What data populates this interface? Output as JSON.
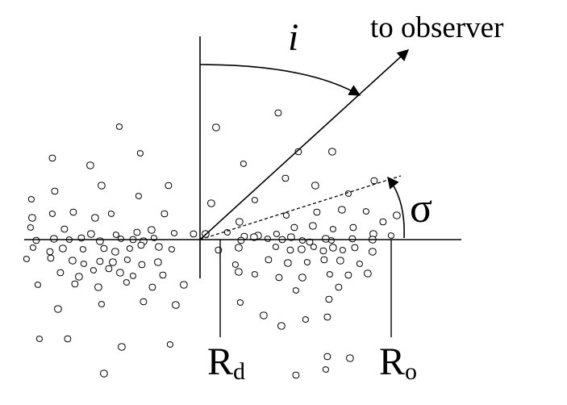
{
  "labels": {
    "observer": "to observer",
    "inclination": "i",
    "angle": "σ",
    "inner_radius_main": "R",
    "inner_radius_sub": "d",
    "outer_radius_main": "R",
    "outer_radius_sub": "o"
  }
}
